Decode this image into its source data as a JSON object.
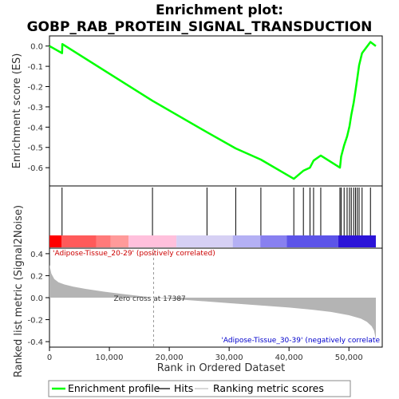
{
  "chart_data": {
    "type": "line",
    "title_lines": [
      "Enrichment plot:",
      "GOBP_RAB_PROTEIN_SIGNAL_TRANSDUCTION"
    ],
    "xlabel": "Rank in Ordered Dataset",
    "es_ylabel": "Enrichment score (ES)",
    "metric_ylabel": "Ranked list metric (Signal2Noise)",
    "xlim": [
      0,
      54500
    ],
    "x_ticks": [
      0,
      10000,
      20000,
      30000,
      40000,
      50000
    ],
    "x_tick_labels": [
      "0",
      "10,000",
      "20,000",
      "30,000",
      "40,000",
      "50,000"
    ],
    "es_ylim": [
      -0.69,
      0.05
    ],
    "es_ticks": [
      0.0,
      -0.1,
      -0.2,
      -0.3,
      -0.4,
      -0.5,
      -0.6
    ],
    "es_tick_labels": [
      "0.0",
      "-0.1",
      "-0.2",
      "-0.3",
      "-0.4",
      "-0.5",
      "-0.6"
    ],
    "metric_ylim": [
      -0.45,
      0.45
    ],
    "metric_ticks": [
      0.4,
      0.2,
      0.0,
      -0.2,
      -0.4
    ],
    "metric_tick_labels": [
      "0.4",
      "0.2",
      "0.0",
      "-0.2",
      "-0.4"
    ],
    "enrichment_profile": {
      "x": [
        0,
        2100,
        2150,
        17200,
        26300,
        31100,
        35300,
        40800,
        42400,
        43500,
        44100,
        45300,
        48500,
        48700,
        49200,
        49700,
        50100,
        50400,
        50800,
        51100,
        51400,
        51700,
        52200,
        53600,
        54500
      ],
      "y": [
        0.0,
        -0.035,
        0.01,
        -0.27,
        -0.425,
        -0.505,
        -0.56,
        -0.655,
        -0.615,
        -0.6,
        -0.565,
        -0.54,
        -0.6,
        -0.545,
        -0.49,
        -0.445,
        -0.395,
        -0.34,
        -0.28,
        -0.22,
        -0.16,
        -0.095,
        -0.035,
        0.02,
        0.0
      ]
    },
    "hits": [
      2100,
      17200,
      26300,
      31100,
      35300,
      40800,
      42400,
      43500,
      44100,
      45300,
      48500,
      48700,
      49200,
      49700,
      50100,
      50400,
      50800,
      51100,
      51400,
      51700,
      52200,
      53600
    ],
    "metric_curve": {
      "x": [
        0,
        300,
        800,
        1500,
        2500,
        4000,
        6000,
        9000,
        12000,
        15000,
        17387,
        20000,
        25000,
        30000,
        35000,
        40000,
        44000,
        47000,
        50000,
        52000,
        53000,
        53800,
        54200,
        54500
      ],
      "y": [
        0.3,
        0.22,
        0.17,
        0.14,
        0.12,
        0.1,
        0.08,
        0.055,
        0.035,
        0.015,
        0.0,
        -0.01,
        -0.03,
        -0.05,
        -0.07,
        -0.09,
        -0.11,
        -0.13,
        -0.16,
        -0.19,
        -0.22,
        -0.26,
        -0.3,
        -0.38
      ]
    },
    "zero_cross_rank": 17387,
    "zero_cross_label": "Zero cross at 17387",
    "positive_label": "'Adipose-Tissue_20-29' (positively correlated)",
    "negative_label": "'Adipose-Tissue_30-39' (negatively correlate",
    "positive_color": "#cc0000",
    "negative_color": "#0000cc",
    "profile_color": "#00ff00",
    "heat_band": [
      {
        "from": 0,
        "to": 2000,
        "color": "#ff0000"
      },
      {
        "from": 2000,
        "to": 7800,
        "color": "#ff5a5a"
      },
      {
        "from": 7800,
        "to": 10200,
        "color": "#ff7a7a"
      },
      {
        "from": 10200,
        "to": 13200,
        "color": "#ff9a9a"
      },
      {
        "from": 13200,
        "to": 21200,
        "color": "#ffc0dc"
      },
      {
        "from": 21200,
        "to": 30600,
        "color": "#d6d0f4"
      },
      {
        "from": 30600,
        "to": 35200,
        "color": "#b4b0f4"
      },
      {
        "from": 35200,
        "to": 39600,
        "color": "#8880f0"
      },
      {
        "from": 39600,
        "to": 48200,
        "color": "#5c54e8"
      },
      {
        "from": 48200,
        "to": 54500,
        "color": "#2c14d8"
      }
    ],
    "legend": [
      {
        "label": "Enrichment profile",
        "color": "#00ff00",
        "style": "thick"
      },
      {
        "label": "Hits",
        "color": "#000000",
        "style": "thin"
      },
      {
        "label": "Ranking metric scores",
        "color": "#c0c0c0",
        "style": "thin"
      }
    ]
  }
}
